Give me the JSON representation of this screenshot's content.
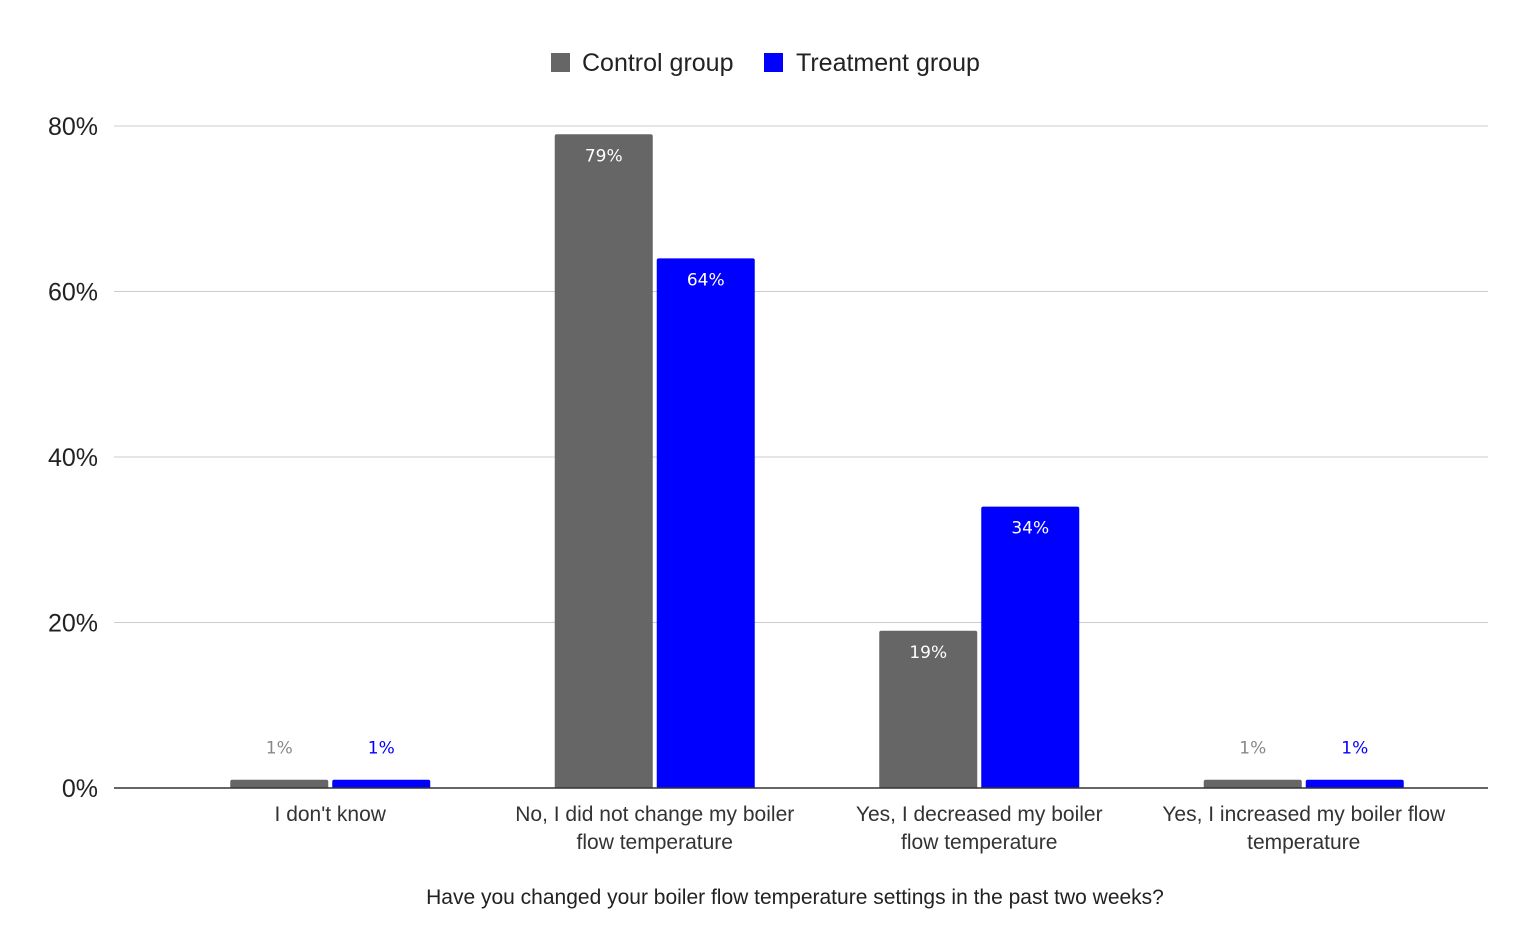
{
  "chart_data": {
    "type": "bar",
    "categories": [
      [
        "I don't know"
      ],
      [
        "No, I did not change my boiler",
        "flow temperature"
      ],
      [
        "Yes, I decreased my boiler",
        "flow temperature"
      ],
      [
        "Yes, I increased my boiler flow",
        "temperature"
      ]
    ],
    "series": [
      {
        "name": "Control group",
        "color": "#666666",
        "values": [
          1,
          79,
          19,
          1
        ],
        "labels": [
          "1%",
          "79%",
          "19%",
          "1%"
        ]
      },
      {
        "name": "Treatment group",
        "color": "#0000ff",
        "values": [
          1,
          64,
          34,
          1
        ],
        "labels": [
          "1%",
          "64%",
          "34%",
          "1%"
        ]
      }
    ],
    "title": "",
    "xlabel": "Have you changed your boiler flow temperature settings in the past two weeks?",
    "ylabel": "",
    "ylim": [
      0,
      80
    ],
    "yticks": [
      0,
      20,
      40,
      60,
      80
    ],
    "ytick_labels": [
      "0%",
      "20%",
      "40%",
      "60%",
      "80%"
    ],
    "grid": true,
    "legend_position": "top-center"
  }
}
